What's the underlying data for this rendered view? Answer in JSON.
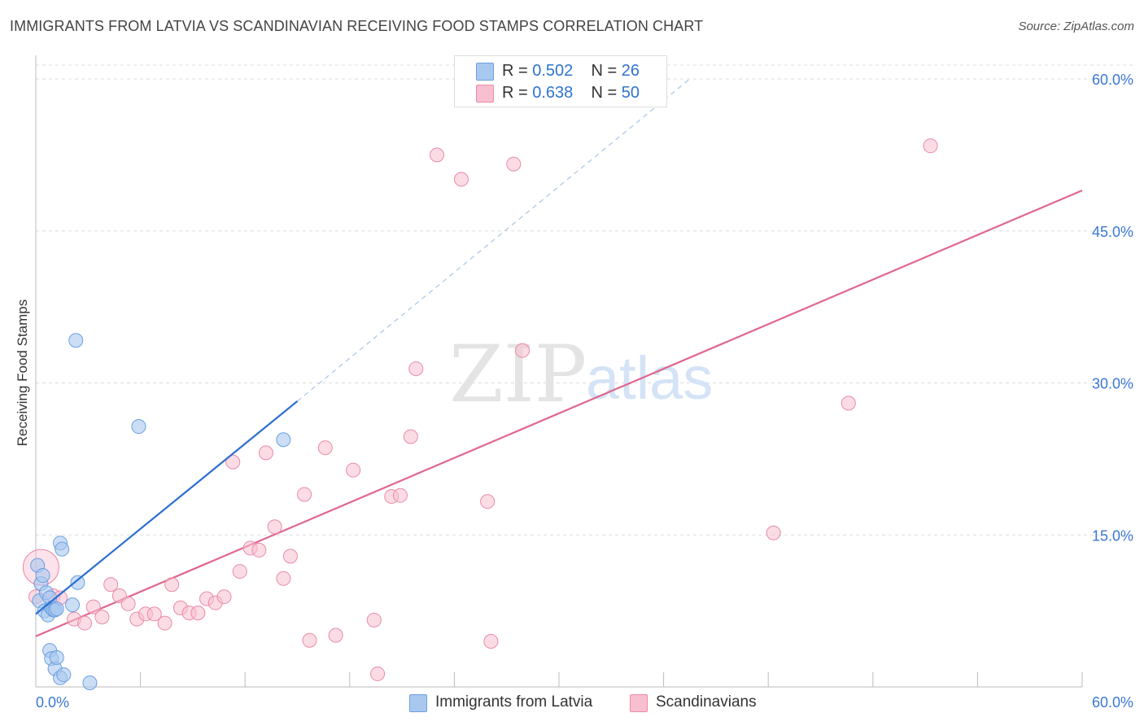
{
  "header": {
    "title": "IMMIGRANTS FROM LATVIA VS SCANDINAVIAN RECEIVING FOOD STAMPS CORRELATION CHART",
    "source": "Source: ZipAtlas.com"
  },
  "legend": {
    "latvia": {
      "r_label": "R = ",
      "r_value": "0.502",
      "n_label": "N = ",
      "n_value": "26"
    },
    "scandinavian": {
      "r_label": "R = ",
      "r_value": "0.638",
      "n_label": "N = ",
      "n_value": "50"
    }
  },
  "bottom_legend": {
    "latvia": "Immigrants from Latvia",
    "scandinavian": "Scandinavians"
  },
  "watermark": {
    "zip": "ZIP",
    "atlas": "atlas"
  },
  "colors": {
    "latvia_fill": "#a9c8f0",
    "latvia_stroke": "#6a9fe0",
    "latvia_line": "#2a6fd0",
    "scand_fill": "#f8bfd0",
    "scand_stroke": "#ea8aa8",
    "scand_line": "#e0668f",
    "tick_label": "#3a78d2",
    "grid": "#dddddd"
  },
  "chart_data": {
    "type": "scatter",
    "title": "IMMIGRANTS FROM LATVIA VS SCANDINAVIAN RECEIVING FOOD STAMPS CORRELATION CHART",
    "xlabel": "",
    "ylabel": "Receiving Food Stamps",
    "xlim": [
      0,
      60
    ],
    "ylim": [
      0,
      60
    ],
    "x_tick_labels": [
      "0.0%",
      "60.0%"
    ],
    "y_ticks": [
      15,
      30,
      45,
      60
    ],
    "y_tick_labels": [
      "15.0%",
      "30.0%",
      "45.0%",
      "60.0%"
    ],
    "grid": true,
    "series": [
      {
        "name": "Immigrants from Latvia",
        "r": 0.502,
        "n": 26,
        "points": [
          [
            0.1,
            12.0
          ],
          [
            0.2,
            8.5
          ],
          [
            0.3,
            10.2
          ],
          [
            0.4,
            11.0
          ],
          [
            0.5,
            7.5
          ],
          [
            0.6,
            9.3
          ],
          [
            0.7,
            7.1
          ],
          [
            0.8,
            8.8
          ],
          [
            0.9,
            7.8
          ],
          [
            1.0,
            7.6
          ],
          [
            1.1,
            7.6
          ],
          [
            1.2,
            7.7
          ],
          [
            0.8,
            3.6
          ],
          [
            0.9,
            2.8
          ],
          [
            1.1,
            1.8
          ],
          [
            1.2,
            2.9
          ],
          [
            1.4,
            0.9
          ],
          [
            1.6,
            1.2
          ],
          [
            1.4,
            14.2
          ],
          [
            1.5,
            13.6
          ],
          [
            2.1,
            8.1
          ],
          [
            2.4,
            10.3
          ],
          [
            2.3,
            34.2
          ],
          [
            3.1,
            0.4
          ],
          [
            5.9,
            25.7
          ],
          [
            14.2,
            24.4
          ]
        ],
        "trend": {
          "x": [
            0.0,
            15.0
          ],
          "y": [
            7.2,
            28.2
          ],
          "dashed_extension": {
            "x": [
              15.0,
              37.5
            ],
            "y": [
              28.2,
              60.0
            ]
          }
        }
      },
      {
        "name": "Scandinavians",
        "r": 0.638,
        "n": 50,
        "points": [
          [
            0.3,
            11.8
          ],
          [
            1.0,
            9.0
          ],
          [
            1.4,
            8.8
          ],
          [
            2.2,
            6.7
          ],
          [
            2.8,
            6.3
          ],
          [
            3.3,
            7.9
          ],
          [
            3.8,
            6.9
          ],
          [
            4.3,
            10.1
          ],
          [
            4.8,
            9.0
          ],
          [
            5.3,
            8.2
          ],
          [
            5.8,
            6.7
          ],
          [
            6.3,
            7.2
          ],
          [
            6.8,
            7.2
          ],
          [
            7.4,
            6.3
          ],
          [
            7.8,
            10.1
          ],
          [
            8.3,
            7.8
          ],
          [
            8.8,
            7.3
          ],
          [
            9.3,
            7.3
          ],
          [
            9.8,
            8.7
          ],
          [
            10.3,
            8.3
          ],
          [
            10.8,
            8.9
          ],
          [
            11.3,
            22.2
          ],
          [
            11.7,
            11.4
          ],
          [
            12.3,
            13.7
          ],
          [
            12.8,
            13.5
          ],
          [
            13.2,
            23.1
          ],
          [
            13.7,
            15.8
          ],
          [
            14.2,
            10.7
          ],
          [
            14.6,
            12.9
          ],
          [
            15.4,
            19.0
          ],
          [
            15.7,
            4.6
          ],
          [
            16.6,
            23.6
          ],
          [
            17.2,
            5.1
          ],
          [
            18.2,
            21.4
          ],
          [
            19.4,
            6.6
          ],
          [
            19.6,
            1.3
          ],
          [
            20.4,
            18.8
          ],
          [
            20.9,
            18.9
          ],
          [
            21.5,
            24.7
          ],
          [
            21.8,
            31.4
          ],
          [
            23.0,
            52.5
          ],
          [
            24.4,
            50.1
          ],
          [
            25.9,
            18.3
          ],
          [
            26.1,
            4.5
          ],
          [
            27.4,
            51.6
          ],
          [
            27.9,
            33.2
          ],
          [
            42.3,
            15.2
          ],
          [
            46.6,
            28.0
          ],
          [
            51.3,
            53.4
          ],
          [
            0.0,
            8.9
          ]
        ],
        "trend": {
          "x": [
            0.0,
            60.0
          ],
          "y": [
            5.0,
            49.0
          ]
        }
      }
    ]
  }
}
